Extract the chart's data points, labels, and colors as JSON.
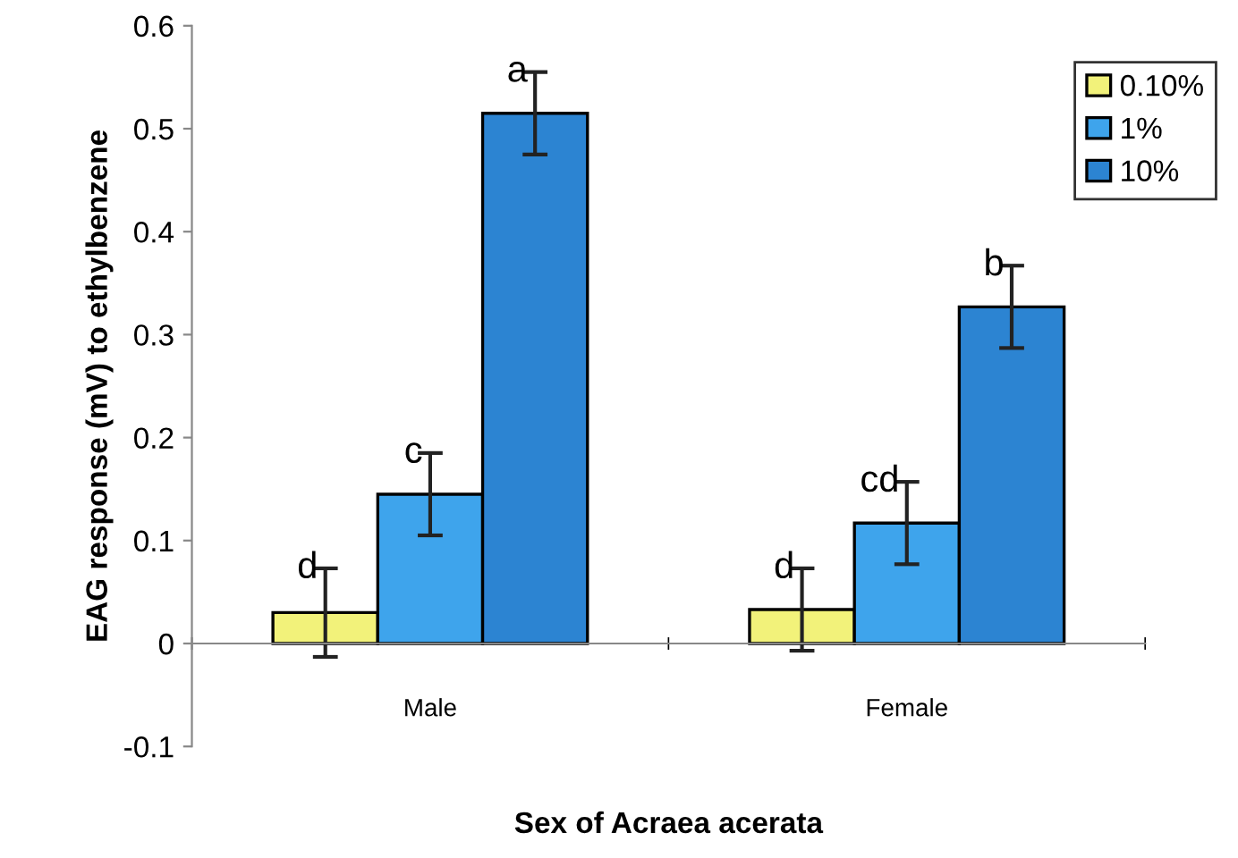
{
  "chart_data": {
    "type": "bar",
    "xlabel": "Sex of Acraea acerata",
    "ylabel": "EAG response (mV) to ethylbenzene",
    "categories": [
      "Male",
      "Female"
    ],
    "series": [
      {
        "name": "0.10%",
        "color": "#f2f27a",
        "values": [
          0.03,
          0.033
        ],
        "errors": [
          0.043,
          0.04
        ]
      },
      {
        "name": "1%",
        "color": "#3ea4ec",
        "values": [
          0.145,
          0.117
        ],
        "errors": [
          0.04,
          0.04
        ]
      },
      {
        "name": "10%",
        "color": "#2c84d2",
        "values": [
          0.515,
          0.327
        ],
        "errors": [
          0.04,
          0.04
        ]
      }
    ],
    "ylim": [
      -0.1,
      0.6
    ],
    "yticks": [
      {
        "value": -0.1,
        "label": "-0.1"
      },
      0,
      0.1,
      0.2,
      0.3,
      0.4,
      0.5,
      0.6
    ],
    "annotations": [
      "d",
      "c",
      "a",
      "d",
      "cd",
      "b"
    ],
    "legend": "top right",
    "grid": false
  }
}
